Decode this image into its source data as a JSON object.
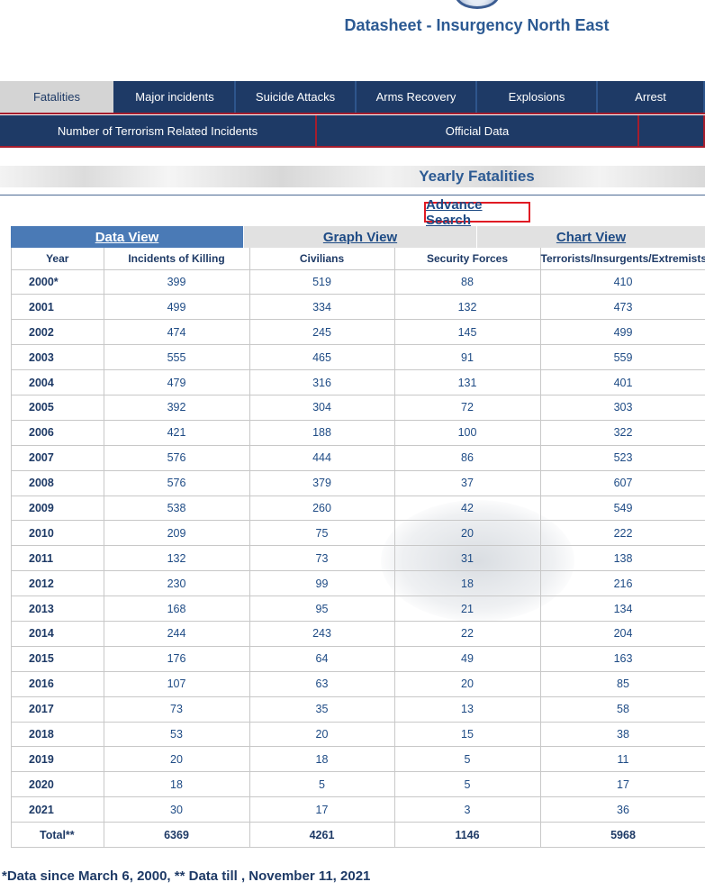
{
  "header": {
    "title": "Datasheet - Insurgency North East"
  },
  "nav_primary": [
    {
      "label": "Fatalities",
      "width": 128,
      "active": true
    },
    {
      "label": "Major incidents",
      "width": 134
    },
    {
      "label": "Suicide Attacks",
      "width": 134
    },
    {
      "label": "Arms Recovery",
      "width": 134
    },
    {
      "label": "Explosions",
      "width": 134
    },
    {
      "label": "Arrest",
      "width": 119
    }
  ],
  "nav_secondary": [
    {
      "label": "Number of Terrorism Related Incidents",
      "width": 352
    },
    {
      "label": "Official Data",
      "width": 358
    },
    {
      "label": "",
      "width": 73
    }
  ],
  "section": {
    "title": "Yearly Fatalities"
  },
  "advance_search": "Advance Search",
  "views": [
    {
      "label": "Data View",
      "active": true,
      "width": 258
    },
    {
      "label": "Graph View",
      "active": false,
      "width": 259
    },
    {
      "label": "Chart View",
      "active": false,
      "width": 254
    }
  ],
  "table": {
    "columns": [
      "Year",
      "Incidents of Killing",
      "Civilians",
      "Security Forces",
      "Terrorists/Insurgents/Extremists"
    ],
    "rows": [
      [
        "2000*",
        "399",
        "519",
        "88",
        "410"
      ],
      [
        "2001",
        "499",
        "334",
        "132",
        "473"
      ],
      [
        "2002",
        "474",
        "245",
        "145",
        "499"
      ],
      [
        "2003",
        "555",
        "465",
        "91",
        "559"
      ],
      [
        "2004",
        "479",
        "316",
        "131",
        "401"
      ],
      [
        "2005",
        "392",
        "304",
        "72",
        "303"
      ],
      [
        "2006",
        "421",
        "188",
        "100",
        "322"
      ],
      [
        "2007",
        "576",
        "444",
        "86",
        "523"
      ],
      [
        "2008",
        "576",
        "379",
        "37",
        "607"
      ],
      [
        "2009",
        "538",
        "260",
        "42",
        "549"
      ],
      [
        "2010",
        "209",
        "75",
        "20",
        "222"
      ],
      [
        "2011",
        "132",
        "73",
        "31",
        "138"
      ],
      [
        "2012",
        "230",
        "99",
        "18",
        "216"
      ],
      [
        "2013",
        "168",
        "95",
        "21",
        "134"
      ],
      [
        "2014",
        "244",
        "243",
        "22",
        "204"
      ],
      [
        "2015",
        "176",
        "64",
        "49",
        "163"
      ],
      [
        "2016",
        "107",
        "63",
        "20",
        "85"
      ],
      [
        "2017",
        "73",
        "35",
        "13",
        "58"
      ],
      [
        "2018",
        "53",
        "20",
        "15",
        "38"
      ],
      [
        "2019",
        "20",
        "18",
        "5",
        "11"
      ],
      [
        "2020",
        "18",
        "5",
        "5",
        "17"
      ],
      [
        "2021",
        "30",
        "17",
        "3",
        "36"
      ]
    ],
    "total": [
      "Total**",
      "6369",
      "4261",
      "1146",
      "5968"
    ]
  },
  "footnote": "*Data since March 6, 2000, ** Data till , November 11, 2021"
}
